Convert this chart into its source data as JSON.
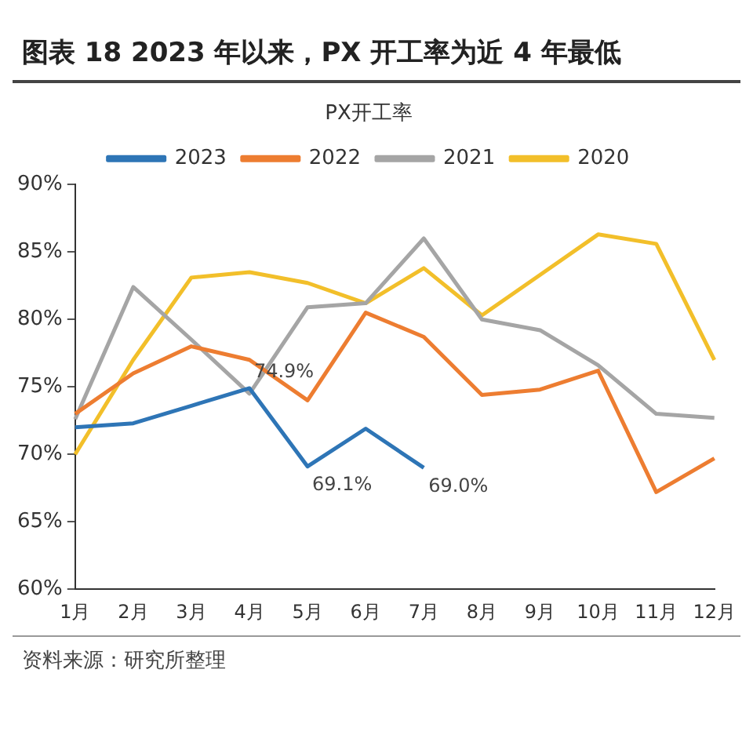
{
  "chart_data": {
    "type": "line",
    "title": "图表 18 2023 年以来，PX 开工率为近 4 年最低",
    "subtitle": "PX开工率",
    "categories": [
      "1月",
      "2月",
      "3月",
      "4月",
      "5月",
      "6月",
      "7月",
      "8月",
      "9月",
      "10月",
      "11月",
      "12月"
    ],
    "series": [
      {
        "name": "2023",
        "color": "#2e75b6",
        "values": [
          72.0,
          72.3,
          73.6,
          74.9,
          69.1,
          71.9,
          69.0,
          null,
          null,
          null,
          null,
          null
        ],
        "value_labels": [
          null,
          null,
          null,
          "74.9%",
          "69.1%",
          null,
          "69.0%",
          null,
          null,
          null,
          null,
          null
        ]
      },
      {
        "name": "2022",
        "color": "#ed7d31",
        "values": [
          73,
          76,
          78,
          77,
          74,
          80.5,
          78.7,
          74.4,
          74.8,
          76.2,
          67.2,
          69.7
        ]
      },
      {
        "name": "2021",
        "color": "#a5a5a5",
        "values": [
          72.6,
          82.4,
          78.5,
          74.5,
          80.9,
          81.2,
          86,
          80,
          79.2,
          76.6,
          73,
          72.7
        ]
      },
      {
        "name": "2020",
        "color": "#f2bf2a",
        "values": [
          70,
          77,
          83.1,
          83.5,
          82.7,
          81.2,
          83.8,
          80.3,
          83.3,
          86.3,
          85.6,
          77
        ]
      }
    ],
    "ylim": [
      60,
      90
    ],
    "yticks": [
      {
        "value": 60,
        "label": "60%"
      },
      {
        "value": 65,
        "label": "65%"
      },
      {
        "value": 70,
        "label": "70%"
      },
      {
        "value": 75,
        "label": "75%"
      },
      {
        "value": 80,
        "label": "80%"
      },
      {
        "value": 85,
        "label": "85%"
      },
      {
        "value": 90,
        "label": "90%"
      }
    ],
    "grid": false,
    "legend": "top",
    "marker": "none",
    "line_style": "solid",
    "annotations": [
      "资料来源：研究所整理"
    ]
  }
}
